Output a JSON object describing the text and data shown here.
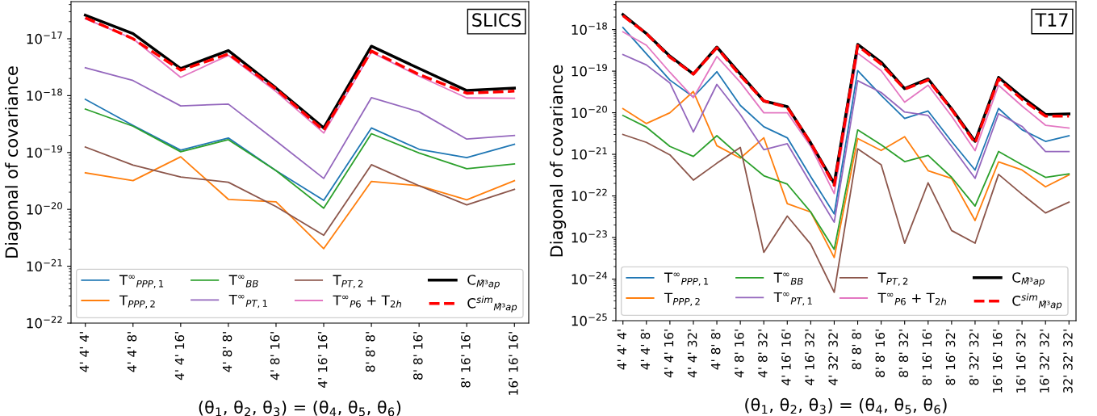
{
  "chart_data": [
    {
      "type": "line",
      "ylabel": "Diagonal of covariance",
      "xlabel": "(θ$_{1}$, θ$_{2}$, θ$_{3}$) = (θ$_{4}$, θ$_{5}$, θ$_{6}$)",
      "annotations": [
        "SLICS"
      ],
      "log": true,
      "ylim": [
        1e-22,
        4.5e-17
      ],
      "yticks": [
        {
          "value": 1e-22,
          "label": "10$^{−22}$"
        },
        {
          "value": 1e-21,
          "label": "10$^{−21}$"
        },
        {
          "value": 1e-20,
          "label": "10$^{−20}$"
        },
        {
          "value": 1e-19,
          "label": "10$^{−19}$"
        },
        {
          "value": 1e-18,
          "label": "10$^{−18}$"
        },
        {
          "value": 1e-17,
          "label": "10$^{−17}$"
        }
      ],
      "legend": "bottom left",
      "grid": false,
      "categories": [
        "4' 4' 4'",
        "4' 4' 8'",
        "4' 4' 16'",
        "4' 8' 8'",
        "4' 8' 16'",
        "4' 16' 16'",
        "8' 8' 8'",
        "8' 8' 16'",
        "8' 16' 16'",
        "16' 16' 16'"
      ],
      "series": [
        {
          "name": "T$^{∞}$$_{PPP,1}$",
          "color": "#1f77b4",
          "values": [
            8.6e-19,
            3e-19,
            1.1e-19,
            1.8e-19,
            4.8e-20,
            1.44e-20,
            2.7e-19,
            1.14e-19,
            8.1e-20,
            1.4e-19
          ]
        },
        {
          "name": "T$_{PPP,2}$",
          "color": "#ff7f0e",
          "values": [
            4.4e-20,
            3.2e-20,
            8.4e-20,
            1.5e-20,
            1.36e-20,
            2.04e-21,
            3.1e-20,
            2.6e-20,
            1.47e-20,
            3.2e-20
          ]
        },
        {
          "name": "T$^{∞}$$_{BB}$",
          "color": "#2ca02c",
          "values": [
            5.8e-19,
            2.9e-19,
            1.03e-19,
            1.68e-19,
            4.8e-20,
            1.05e-20,
            2.14e-19,
            9.8e-20,
            5.2e-20,
            6.3e-20
          ]
        },
        {
          "name": "T$^{∞}$$_{PT,1}$",
          "color": "#9467bd",
          "values": [
            3.1e-18,
            1.84e-18,
            6.6e-19,
            7.1e-19,
            1.6e-19,
            3.5e-20,
            9.2e-19,
            5.2e-19,
            1.72e-19,
            2e-19
          ]
        },
        {
          "name": "T$_{PT,2}$",
          "color": "#8c564b",
          "values": [
            1.25e-19,
            6e-20,
            3.7e-20,
            3e-20,
            1.12e-20,
            3.5e-21,
            6.1e-20,
            2.6e-20,
            1.2e-20,
            2.25e-20
          ]
        },
        {
          "name": "T$^{∞}$$_{P6}$ + T$_{2h}$",
          "color": "#e377c2",
          "values": [
            2.25e-17,
            1e-17,
            2.1e-18,
            5.1e-18,
            1.18e-18,
            2.2e-19,
            5.8e-18,
            2.2e-18,
            9.1e-19,
            9e-19
          ]
        },
        {
          "name": "C$_{M̂³ap}$",
          "color": "#000000",
          "line_style": "solid",
          "values": [
            2.6e-17,
            1.23e-17,
            3e-18,
            6.2e-18,
            1.36e-18,
            2.7e-19,
            7.4e-18,
            3e-18,
            1.23e-18,
            1.36e-18
          ]
        },
        {
          "name": "C$^{sim}$$_{M̂³ap}$",
          "color": "#ff0000",
          "line_style": "dashed",
          "values": [
            2.35e-17,
            1e-17,
            2.8e-18,
            5.4e-18,
            1.3e-18,
            2.45e-19,
            6.1e-18,
            2.35e-18,
            1.1e-18,
            1.2e-18
          ]
        }
      ]
    },
    {
      "type": "line",
      "ylabel": "Diagonal of covariance",
      "xlabel": "(θ$_{1}$, θ$_{2}$, θ$_{3}$) = (θ$_{4}$, θ$_{5}$, θ$_{6}$)",
      "annotations": [
        "T17"
      ],
      "log": true,
      "ylim": [
        1e-25,
        4.7e-18
      ],
      "yticks": [
        {
          "value": 1e-25,
          "label": "10$^{−25}$"
        },
        {
          "value": 1e-24,
          "label": "10$^{−24}$"
        },
        {
          "value": 1e-23,
          "label": "10$^{−23}$"
        },
        {
          "value": 1e-22,
          "label": "10$^{−22}$"
        },
        {
          "value": 1e-21,
          "label": "10$^{−21}$"
        },
        {
          "value": 1e-20,
          "label": "10$^{−20}$"
        },
        {
          "value": 1e-19,
          "label": "10$^{−19}$"
        },
        {
          "value": 1e-18,
          "label": "10$^{−18}$"
        }
      ],
      "legend": "bottom left",
      "grid": false,
      "categories": [
        "4' 4' 4'",
        "4' 4' 8'",
        "4' 4' 16'",
        "4' 4' 32'",
        "4' 8' 8'",
        "4' 8' 16'",
        "4' 8' 32'",
        "4' 16' 16'",
        "4' 16' 32'",
        "4' 32' 32'",
        "8' 8' 8'",
        "8' 8' 16'",
        "8' 8' 32'",
        "8' 16' 16'",
        "8' 16' 32'",
        "8' 32' 32'",
        "16' 16' 16'",
        "16' 16' 32'",
        "16' 32' 32'",
        "32' 32' 32'"
      ],
      "series": [
        {
          "name": "T$^{∞}$$_{PPP,1}$",
          "color": "#1f77b4",
          "values": [
            1.12e-18,
            2.6e-19,
            6.1e-20,
            2.4e-20,
            9.7e-20,
            1.5e-20,
            4.6e-21,
            2.5e-21,
            2.9e-22,
            3.7e-23,
            1.03e-19,
            2.6e-20,
            7.3e-21,
            1.1e-20,
            2.05e-21,
            4.2e-22,
            1.27e-20,
            3.9e-21,
            2.05e-21,
            2.8e-21
          ]
        },
        {
          "name": "T$_{PPP,2}$",
          "color": "#ff7f0e",
          "values": [
            1.25e-20,
            5.5e-21,
            1e-20,
            3.24e-20,
            1.61e-21,
            8.1e-22,
            2.5e-21,
            6.5e-23,
            4.1e-23,
            3.3e-24,
            2.4e-21,
            1.24e-21,
            2.66e-21,
            4.05e-22,
            2.64e-22,
            2.56e-23,
            6.6e-22,
            4.2e-22,
            1.66e-22,
            3.2e-22
          ]
        },
        {
          "name": "T$^{∞}$$_{BB}$",
          "color": "#2ca02c",
          "values": [
            8.6e-21,
            4.5e-21,
            1.55e-21,
            8.9e-22,
            2.8e-21,
            8.9e-22,
            3.06e-22,
            1.92e-22,
            4.1e-23,
            5.2e-24,
            3.86e-21,
            1.7e-21,
            6.7e-22,
            9.4e-22,
            2.8e-22,
            5.7e-23,
            1.17e-21,
            5.6e-22,
            2.8e-22,
            3.4e-22
          ]
        },
        {
          "name": "T$^{∞}$$_{PT,1}$",
          "color": "#9467bd",
          "values": [
            2.5e-19,
            1.41e-19,
            5.2e-20,
            3.45e-21,
            4.8e-20,
            9.1e-21,
            1.29e-21,
            1.8e-21,
            2e-22,
            2.33e-23,
            5.9e-20,
            3.06e-20,
            1.04e-20,
            8.6e-21,
            1.55e-21,
            2.64e-22,
            9.5e-21,
            4.7e-21,
            1.17e-21,
            1.17e-21
          ]
        },
        {
          "name": "T$_{PT,2}$",
          "color": "#8c564b",
          "values": [
            3e-21,
            1.94e-21,
            9.7e-22,
            2.4e-22,
            6.1e-22,
            1.47e-21,
            4.4e-24,
            3.27e-23,
            6.9e-24,
            4.8e-25,
            1.36e-21,
            5.6e-22,
            7.3e-24,
            2.07e-22,
            1.47e-23,
            7.3e-24,
            3.3e-22,
            1.1e-22,
            3.9e-23,
            7.1e-23
          ]
        },
        {
          "name": "T$^{∞}$$_{P6}$ + T$_{2h}$",
          "color": "#e377c2",
          "values": [
            8.8e-19,
            4.2e-19,
            9.4e-20,
            2.3e-20,
            2.25e-19,
            5.4e-20,
            1e-20,
            1e-20,
            1.55e-21,
            1.14e-22,
            2.7e-19,
            1.03e-19,
            1.8e-20,
            4.6e-20,
            8.3e-21,
            1.22e-21,
            4.6e-20,
            1.45e-20,
            5e-21,
            4.3e-21
          ]
        },
        {
          "name": "C$_{M̂³ap}$",
          "color": "#000000",
          "line_style": "solid",
          "values": [
            2.3e-18,
            8e-19,
            2.3e-19,
            8.5e-20,
            3.8e-19,
            8.5e-20,
            1.92e-20,
            1.4e-20,
            1.87e-21,
            2e-22,
            4.4e-19,
            1.64e-19,
            3.8e-20,
            6.5e-20,
            1.25e-20,
            2.05e-21,
            7.1e-20,
            2.4e-20,
            9.1e-21,
            9.4e-21
          ]
        },
        {
          "name": "C$^{sim}$$_{M̂³ap}$",
          "color": "#ff0000",
          "line_style": "dashed",
          "values": [
            2.15e-18,
            8e-19,
            2.17e-19,
            8.5e-20,
            3.66e-19,
            7.8e-20,
            1.92e-20,
            1.35e-20,
            1.87e-21,
            1.8e-22,
            4.1e-19,
            1.47e-19,
            3.7e-20,
            6.1e-20,
            1.2e-20,
            1.87e-21,
            6.5e-20,
            2.1e-20,
            8.3e-21,
            8.3e-21
          ]
        }
      ]
    }
  ]
}
